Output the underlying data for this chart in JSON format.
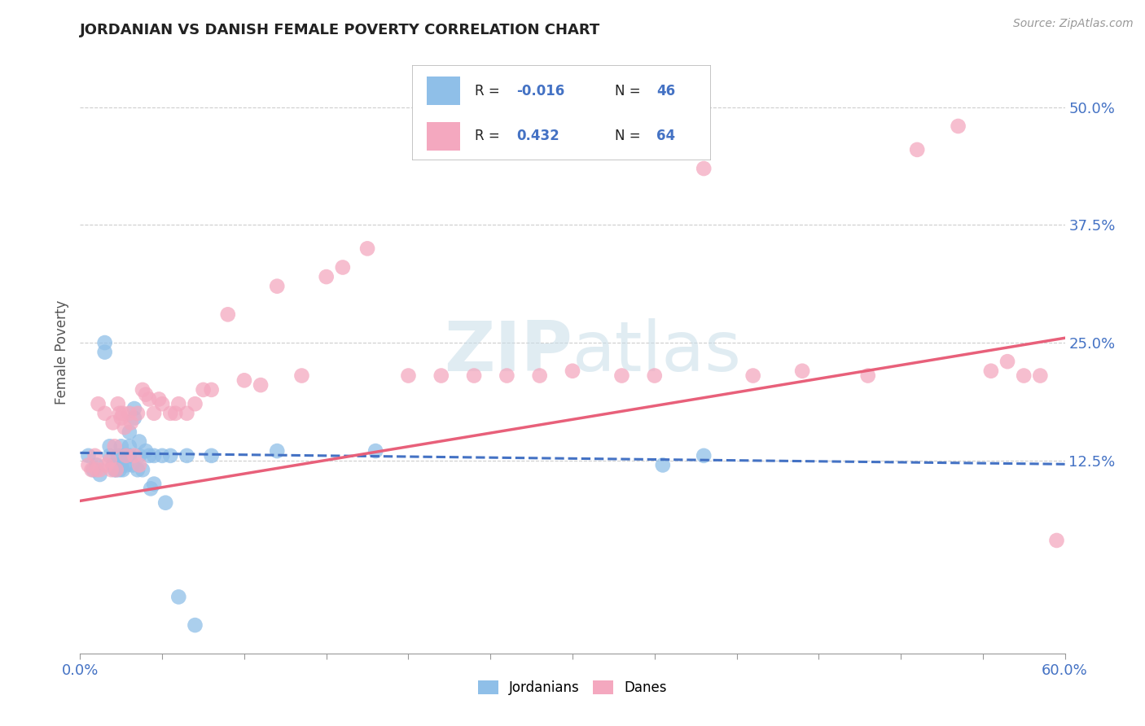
{
  "title": "JORDANIAN VS DANISH FEMALE POVERTY CORRELATION CHART",
  "source": "Source: ZipAtlas.com",
  "ylabel": "Female Poverty",
  "x_min": 0.0,
  "x_max": 0.6,
  "y_min": -0.08,
  "y_max": 0.56,
  "right_yticks": [
    0.125,
    0.25,
    0.375,
    0.5
  ],
  "right_ytick_labels": [
    "12.5%",
    "25.0%",
    "37.5%",
    "50.0%"
  ],
  "jordanians_R": -0.016,
  "jordanians_N": 46,
  "danes_R": 0.432,
  "danes_N": 64,
  "jordanian_color": "#8fbfe8",
  "dane_color": "#f4a8bf",
  "jordanian_line_color": "#4472c4",
  "dane_line_color": "#e8607a",
  "background_color": "#ffffff",
  "grid_color": "#c8c8c8",
  "watermark_color": "#d8e8f0",
  "jordanian_line_y0": 0.133,
  "jordanian_line_y1": 0.121,
  "dane_line_y0": 0.082,
  "dane_line_y1": 0.255,
  "jordanians_x": [
    0.005,
    0.008,
    0.01,
    0.012,
    0.015,
    0.015,
    0.018,
    0.018,
    0.02,
    0.021,
    0.022,
    0.023,
    0.023,
    0.024,
    0.025,
    0.025,
    0.026,
    0.027,
    0.028,
    0.028,
    0.03,
    0.03,
    0.03,
    0.032,
    0.033,
    0.033,
    0.035,
    0.036,
    0.036,
    0.038,
    0.04,
    0.042,
    0.043,
    0.045,
    0.045,
    0.05,
    0.052,
    0.055,
    0.06,
    0.065,
    0.07,
    0.08,
    0.12,
    0.18,
    0.355,
    0.38
  ],
  "jordanians_y": [
    0.13,
    0.115,
    0.12,
    0.11,
    0.24,
    0.25,
    0.13,
    0.14,
    0.12,
    0.115,
    0.115,
    0.13,
    0.12,
    0.115,
    0.14,
    0.12,
    0.115,
    0.13,
    0.13,
    0.12,
    0.155,
    0.14,
    0.13,
    0.12,
    0.18,
    0.17,
    0.115,
    0.145,
    0.13,
    0.115,
    0.135,
    0.13,
    0.095,
    0.13,
    0.1,
    0.13,
    0.08,
    0.13,
    -0.02,
    0.13,
    -0.05,
    0.13,
    0.135,
    0.135,
    0.12,
    0.13
  ],
  "danes_x": [
    0.005,
    0.007,
    0.009,
    0.01,
    0.011,
    0.012,
    0.015,
    0.016,
    0.018,
    0.019,
    0.02,
    0.021,
    0.022,
    0.023,
    0.024,
    0.025,
    0.026,
    0.027,
    0.028,
    0.03,
    0.031,
    0.033,
    0.035,
    0.036,
    0.038,
    0.04,
    0.042,
    0.045,
    0.048,
    0.05,
    0.055,
    0.058,
    0.06,
    0.065,
    0.07,
    0.075,
    0.08,
    0.09,
    0.1,
    0.11,
    0.12,
    0.135,
    0.15,
    0.16,
    0.175,
    0.2,
    0.22,
    0.24,
    0.26,
    0.28,
    0.3,
    0.33,
    0.35,
    0.38,
    0.41,
    0.44,
    0.48,
    0.51,
    0.535,
    0.555,
    0.565,
    0.575,
    0.585,
    0.595
  ],
  "danes_y": [
    0.12,
    0.115,
    0.13,
    0.115,
    0.185,
    0.115,
    0.175,
    0.12,
    0.125,
    0.115,
    0.165,
    0.14,
    0.115,
    0.185,
    0.175,
    0.17,
    0.175,
    0.16,
    0.13,
    0.175,
    0.165,
    0.13,
    0.175,
    0.12,
    0.2,
    0.195,
    0.19,
    0.175,
    0.19,
    0.185,
    0.175,
    0.175,
    0.185,
    0.175,
    0.185,
    0.2,
    0.2,
    0.28,
    0.21,
    0.205,
    0.31,
    0.215,
    0.32,
    0.33,
    0.35,
    0.215,
    0.215,
    0.215,
    0.215,
    0.215,
    0.22,
    0.215,
    0.215,
    0.435,
    0.215,
    0.22,
    0.215,
    0.455,
    0.48,
    0.22,
    0.23,
    0.215,
    0.215,
    0.04
  ]
}
